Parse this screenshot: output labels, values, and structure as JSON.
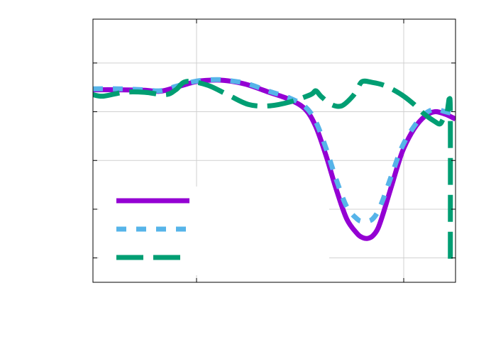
{
  "chart_data": {
    "type": "line",
    "title": "",
    "xlabel": "",
    "ylabel": "",
    "grid": true,
    "legend_placement": "bottom-left",
    "xlim": [
      0,
      3.5
    ],
    "ylim": [
      0,
      5.4
    ],
    "xticks": [
      1,
      3
    ],
    "yticks": [
      0.5,
      1.5,
      2.5,
      3.5,
      4.5
    ],
    "series": [
      {
        "color": "#9400d3",
        "dash": "solid",
        "x": [
          0,
          0.25,
          0.5,
          0.65,
          0.8,
          1.0,
          1.2,
          1.35,
          1.5,
          1.7,
          1.9,
          2.05,
          2.15,
          2.25,
          2.35,
          2.45,
          2.55,
          2.6,
          2.65,
          2.7,
          2.75,
          2.8,
          2.85,
          2.9,
          2.95,
          3.0,
          3.1,
          3.2,
          3.3,
          3.4,
          3.5
        ],
        "y": [
          3.95,
          3.95,
          3.94,
          3.92,
          4.0,
          4.12,
          4.15,
          4.12,
          4.05,
          3.9,
          3.75,
          3.55,
          3.2,
          2.6,
          1.9,
          1.3,
          1.0,
          0.92,
          0.9,
          0.95,
          1.1,
          1.4,
          1.75,
          2.1,
          2.45,
          2.75,
          3.15,
          3.4,
          3.5,
          3.45,
          3.35
        ]
      },
      {
        "color": "#56b4e9",
        "dash": "dashed",
        "x": [
          0,
          0.25,
          0.5,
          0.65,
          0.8,
          1.0,
          1.2,
          1.35,
          1.5,
          1.7,
          1.9,
          2.05,
          2.15,
          2.25,
          2.35,
          2.45,
          2.55,
          2.6,
          2.65,
          2.7,
          2.75,
          2.8,
          2.85,
          2.9,
          2.95,
          3.0,
          3.1,
          3.2,
          3.3,
          3.4,
          3.5
        ],
        "y": [
          3.97,
          3.97,
          3.95,
          3.93,
          4.02,
          4.13,
          4.16,
          4.13,
          4.07,
          3.92,
          3.78,
          3.6,
          3.3,
          2.75,
          2.1,
          1.55,
          1.3,
          1.25,
          1.25,
          1.3,
          1.45,
          1.7,
          2.0,
          2.3,
          2.6,
          2.85,
          3.2,
          3.45,
          3.55,
          3.5,
          3.45
        ]
      },
      {
        "color": "#009e73",
        "dash": "long-dash",
        "x": [
          0,
          0.1,
          0.3,
          0.5,
          0.7,
          0.8,
          0.9,
          1.1,
          1.3,
          1.5,
          1.7,
          1.9,
          2.1,
          2.15,
          2.2,
          2.3,
          2.4,
          2.5,
          2.55,
          2.6,
          2.7,
          2.8,
          2.9,
          3.0,
          3.1,
          3.2,
          3.3,
          3.35,
          3.38,
          3.4,
          3.42,
          3.43,
          3.44,
          3.45,
          3.45
        ],
        "y": [
          3.85,
          3.82,
          3.9,
          3.9,
          3.85,
          3.95,
          4.12,
          4.05,
          3.85,
          3.65,
          3.62,
          3.7,
          3.85,
          3.93,
          3.82,
          3.65,
          3.62,
          3.8,
          3.95,
          4.12,
          4.1,
          4.05,
          3.95,
          3.82,
          3.65,
          3.45,
          3.3,
          3.25,
          3.35,
          3.4,
          3.5,
          3.65,
          3.75,
          3.4,
          0.4
        ]
      }
    ]
  }
}
